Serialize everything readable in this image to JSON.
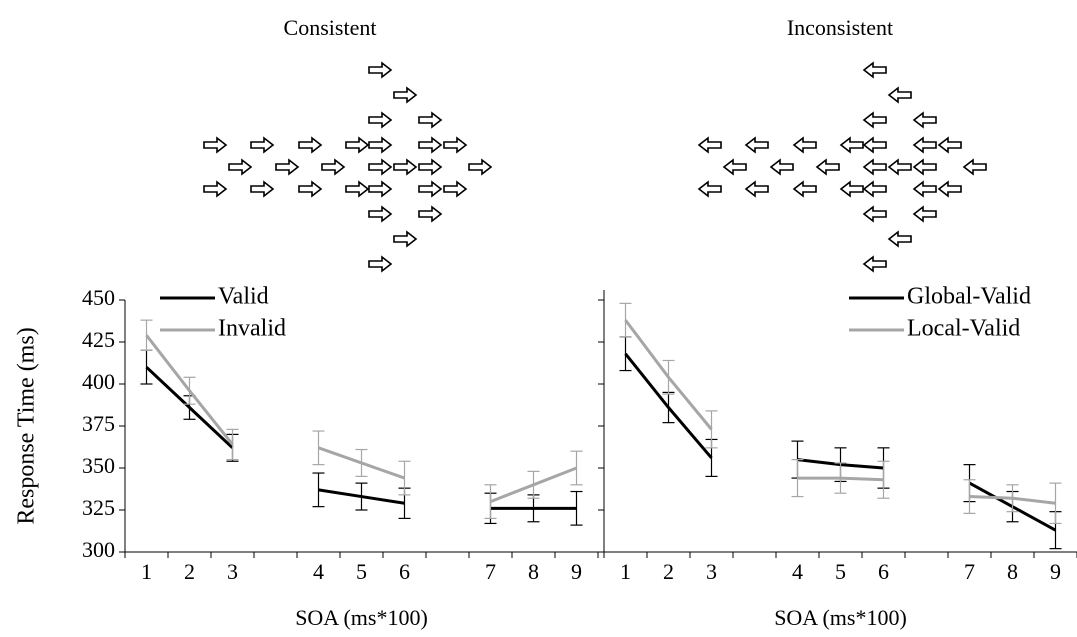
{
  "chart_data": [
    {
      "type": "line",
      "title": "Consistent",
      "x_label": "SOA (ms*100)",
      "y_label": "Response Time (ms)",
      "categories": [
        "1",
        "2",
        "3",
        null,
        "4",
        "5",
        "6",
        null,
        "7",
        "8",
        "9"
      ],
      "series": [
        {
          "name": "Valid",
          "color": "#000000",
          "values": [
            410,
            386,
            362,
            null,
            337,
            333,
            329,
            null,
            326,
            326,
            326
          ],
          "errors": [
            10,
            7,
            8,
            null,
            10,
            8,
            9,
            null,
            9,
            8,
            10
          ]
        },
        {
          "name": "Invalid",
          "color": "#a6a6a6",
          "values": [
            429,
            396,
            364,
            null,
            362,
            353,
            344,
            null,
            330,
            340,
            350
          ],
          "errors": [
            9,
            8,
            9,
            null,
            10,
            8,
            10,
            null,
            10,
            8,
            10
          ]
        }
      ],
      "ylim": [
        300,
        450
      ],
      "yticks": [
        300,
        325,
        350,
        375,
        400,
        425,
        450
      ],
      "ytick_labels": true,
      "legend": "upper left"
    },
    {
      "type": "line",
      "title": "Inconsistent",
      "x_label": "SOA (ms*100)",
      "categories": [
        "1",
        "2",
        "3",
        null,
        "4",
        "5",
        "6",
        null,
        "7",
        "8",
        "9"
      ],
      "series": [
        {
          "name": "Global-Valid",
          "color": "#000000",
          "values": [
            418,
            386,
            356,
            null,
            355,
            352,
            350,
            null,
            341,
            327,
            313
          ],
          "errors": [
            10,
            9,
            11,
            null,
            11,
            10,
            12,
            null,
            11,
            9,
            11
          ]
        },
        {
          "name": "Local-Valid",
          "color": "#a6a6a6",
          "values": [
            438,
            404,
            373,
            null,
            344,
            344,
            343,
            null,
            333,
            332,
            329
          ],
          "errors": [
            10,
            10,
            11,
            null,
            11,
            9,
            11,
            null,
            10,
            8,
            12
          ]
        }
      ],
      "ylim": [
        300,
        450
      ],
      "yticks": [
        300,
        325,
        350,
        375,
        400,
        425,
        450
      ],
      "ytick_labels": false,
      "legend": "upper right"
    }
  ]
}
